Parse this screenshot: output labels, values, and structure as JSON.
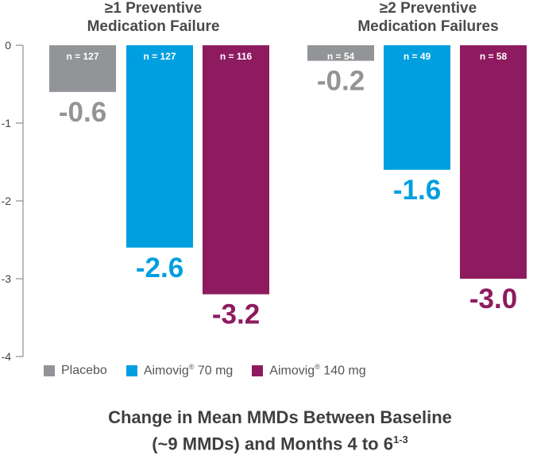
{
  "chart_data": {
    "type": "bar",
    "title": "Change in Mean MMDs Between Baseline (~9 MMDs) and Months 4 to 6",
    "title_line1": "Change in Mean MMDs Between Baseline",
    "title_line2": "(~9 MMDs) and Months 4 to 6",
    "title_superscript": "1-3",
    "categories": [
      "≥1 Preventive Medication Failure",
      "≥2 Preventive Medication Failures"
    ],
    "category_titles": [
      [
        "≥1 Preventive",
        "Medication Failure"
      ],
      [
        "≥2 Preventive",
        "Medication Failures"
      ]
    ],
    "ylim": [
      -4,
      0
    ],
    "yticks": [
      0,
      -1,
      -2,
      -3,
      -4
    ],
    "ytick_labels": [
      "0",
      "-1",
      "-2",
      "-3",
      "-4"
    ],
    "xlabel": "",
    "ylabel": "",
    "series": [
      {
        "name": "Placebo",
        "legend_main": "Placebo",
        "legend_sup": "",
        "legend_tail": "",
        "color": "#929497",
        "label_color": "#929497",
        "values": [
          -0.6,
          -0.2
        ],
        "value_labels": [
          "-0.6",
          "-0.2"
        ],
        "n_labels": [
          "n = 127",
          "n = 54"
        ]
      },
      {
        "name": "Aimovig 70 mg",
        "legend_main": "Aimovig",
        "legend_sup": "®",
        "legend_tail": " 70 mg",
        "color": "#009fdf",
        "label_color": "#009fdf",
        "values": [
          -2.6,
          -1.6
        ],
        "value_labels": [
          "-2.6",
          "-1.6"
        ],
        "n_labels": [
          "n = 127",
          "n = 49"
        ]
      },
      {
        "name": "Aimovig 140 mg",
        "legend_main": "Aimovig",
        "legend_sup": "®",
        "legend_tail": " 140 mg",
        "color": "#8e1b5f",
        "label_color": "#8e1b5f",
        "values": [
          -3.2,
          -3.0
        ],
        "value_labels": [
          "-3.2",
          "-3.0"
        ],
        "n_labels": [
          "n = 116",
          "n = 58"
        ]
      }
    ],
    "legend_position": "bottom-left"
  }
}
